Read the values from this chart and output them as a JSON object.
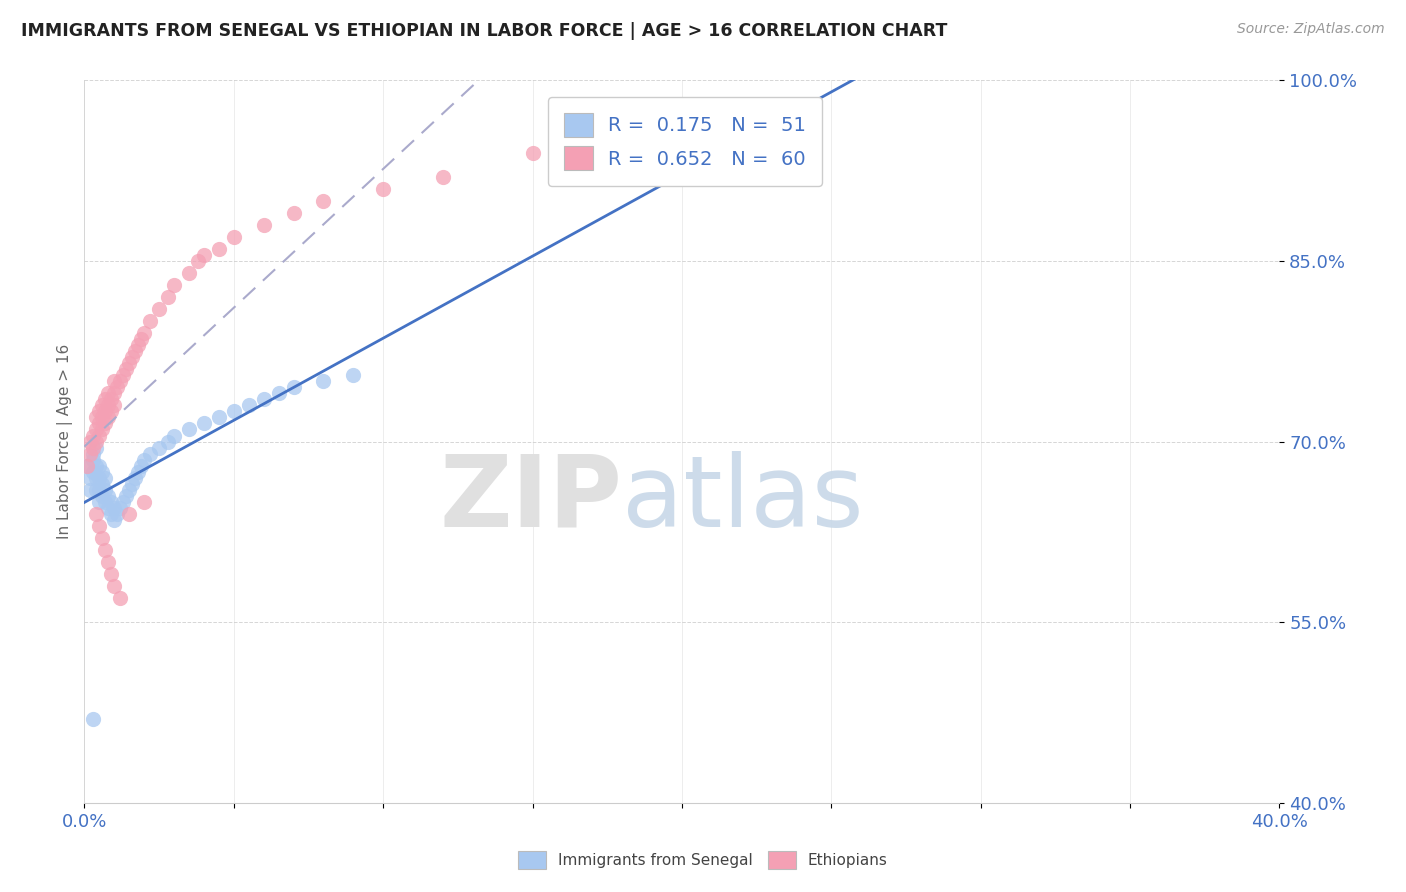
{
  "title": "IMMIGRANTS FROM SENEGAL VS ETHIOPIAN IN LABOR FORCE | AGE > 16 CORRELATION CHART",
  "source_text": "Source: ZipAtlas.com",
  "ylabel": "In Labor Force | Age > 16",
  "xlim": [
    0.0,
    0.4
  ],
  "ylim": [
    0.4,
    1.0
  ],
  "senegal_R": 0.175,
  "senegal_N": 51,
  "ethiopian_R": 0.652,
  "ethiopian_N": 60,
  "senegal_color": "#a8c8f0",
  "ethiopian_color": "#f4a0b4",
  "senegal_line_color": "#4472c4",
  "ethiopian_line_color": "#e07090",
  "legend_color": "#4472c4",
  "background_color": "#ffffff",
  "senegal_x": [
    0.001,
    0.002,
    0.002,
    0.003,
    0.003,
    0.003,
    0.004,
    0.004,
    0.004,
    0.004,
    0.005,
    0.005,
    0.005,
    0.005,
    0.006,
    0.006,
    0.006,
    0.007,
    0.007,
    0.007,
    0.008,
    0.008,
    0.009,
    0.009,
    0.01,
    0.01,
    0.011,
    0.012,
    0.013,
    0.014,
    0.015,
    0.016,
    0.017,
    0.018,
    0.019,
    0.02,
    0.022,
    0.025,
    0.028,
    0.03,
    0.035,
    0.04,
    0.045,
    0.05,
    0.055,
    0.06,
    0.065,
    0.07,
    0.08,
    0.09,
    0.003
  ],
  "senegal_y": [
    0.68,
    0.67,
    0.66,
    0.675,
    0.685,
    0.69,
    0.66,
    0.67,
    0.68,
    0.695,
    0.65,
    0.66,
    0.67,
    0.68,
    0.655,
    0.665,
    0.675,
    0.65,
    0.66,
    0.67,
    0.645,
    0.655,
    0.64,
    0.65,
    0.635,
    0.645,
    0.64,
    0.645,
    0.65,
    0.655,
    0.66,
    0.665,
    0.67,
    0.675,
    0.68,
    0.685,
    0.69,
    0.695,
    0.7,
    0.705,
    0.71,
    0.715,
    0.72,
    0.725,
    0.73,
    0.735,
    0.74,
    0.745,
    0.75,
    0.755,
    0.47
  ],
  "ethiopian_x": [
    0.001,
    0.002,
    0.002,
    0.003,
    0.003,
    0.004,
    0.004,
    0.004,
    0.005,
    0.005,
    0.005,
    0.006,
    0.006,
    0.006,
    0.007,
    0.007,
    0.007,
    0.008,
    0.008,
    0.008,
    0.009,
    0.009,
    0.01,
    0.01,
    0.01,
    0.011,
    0.012,
    0.013,
    0.014,
    0.015,
    0.016,
    0.017,
    0.018,
    0.019,
    0.02,
    0.022,
    0.025,
    0.028,
    0.03,
    0.035,
    0.038,
    0.04,
    0.045,
    0.05,
    0.06,
    0.07,
    0.08,
    0.1,
    0.12,
    0.15,
    0.004,
    0.005,
    0.006,
    0.007,
    0.008,
    0.009,
    0.01,
    0.012,
    0.015,
    0.02
  ],
  "ethiopian_y": [
    0.68,
    0.69,
    0.7,
    0.695,
    0.705,
    0.7,
    0.71,
    0.72,
    0.705,
    0.715,
    0.725,
    0.71,
    0.72,
    0.73,
    0.715,
    0.725,
    0.735,
    0.72,
    0.73,
    0.74,
    0.725,
    0.735,
    0.73,
    0.74,
    0.75,
    0.745,
    0.75,
    0.755,
    0.76,
    0.765,
    0.77,
    0.775,
    0.78,
    0.785,
    0.79,
    0.8,
    0.81,
    0.82,
    0.83,
    0.84,
    0.85,
    0.855,
    0.86,
    0.87,
    0.88,
    0.89,
    0.9,
    0.91,
    0.92,
    0.94,
    0.64,
    0.63,
    0.62,
    0.61,
    0.6,
    0.59,
    0.58,
    0.57,
    0.64,
    0.65
  ]
}
